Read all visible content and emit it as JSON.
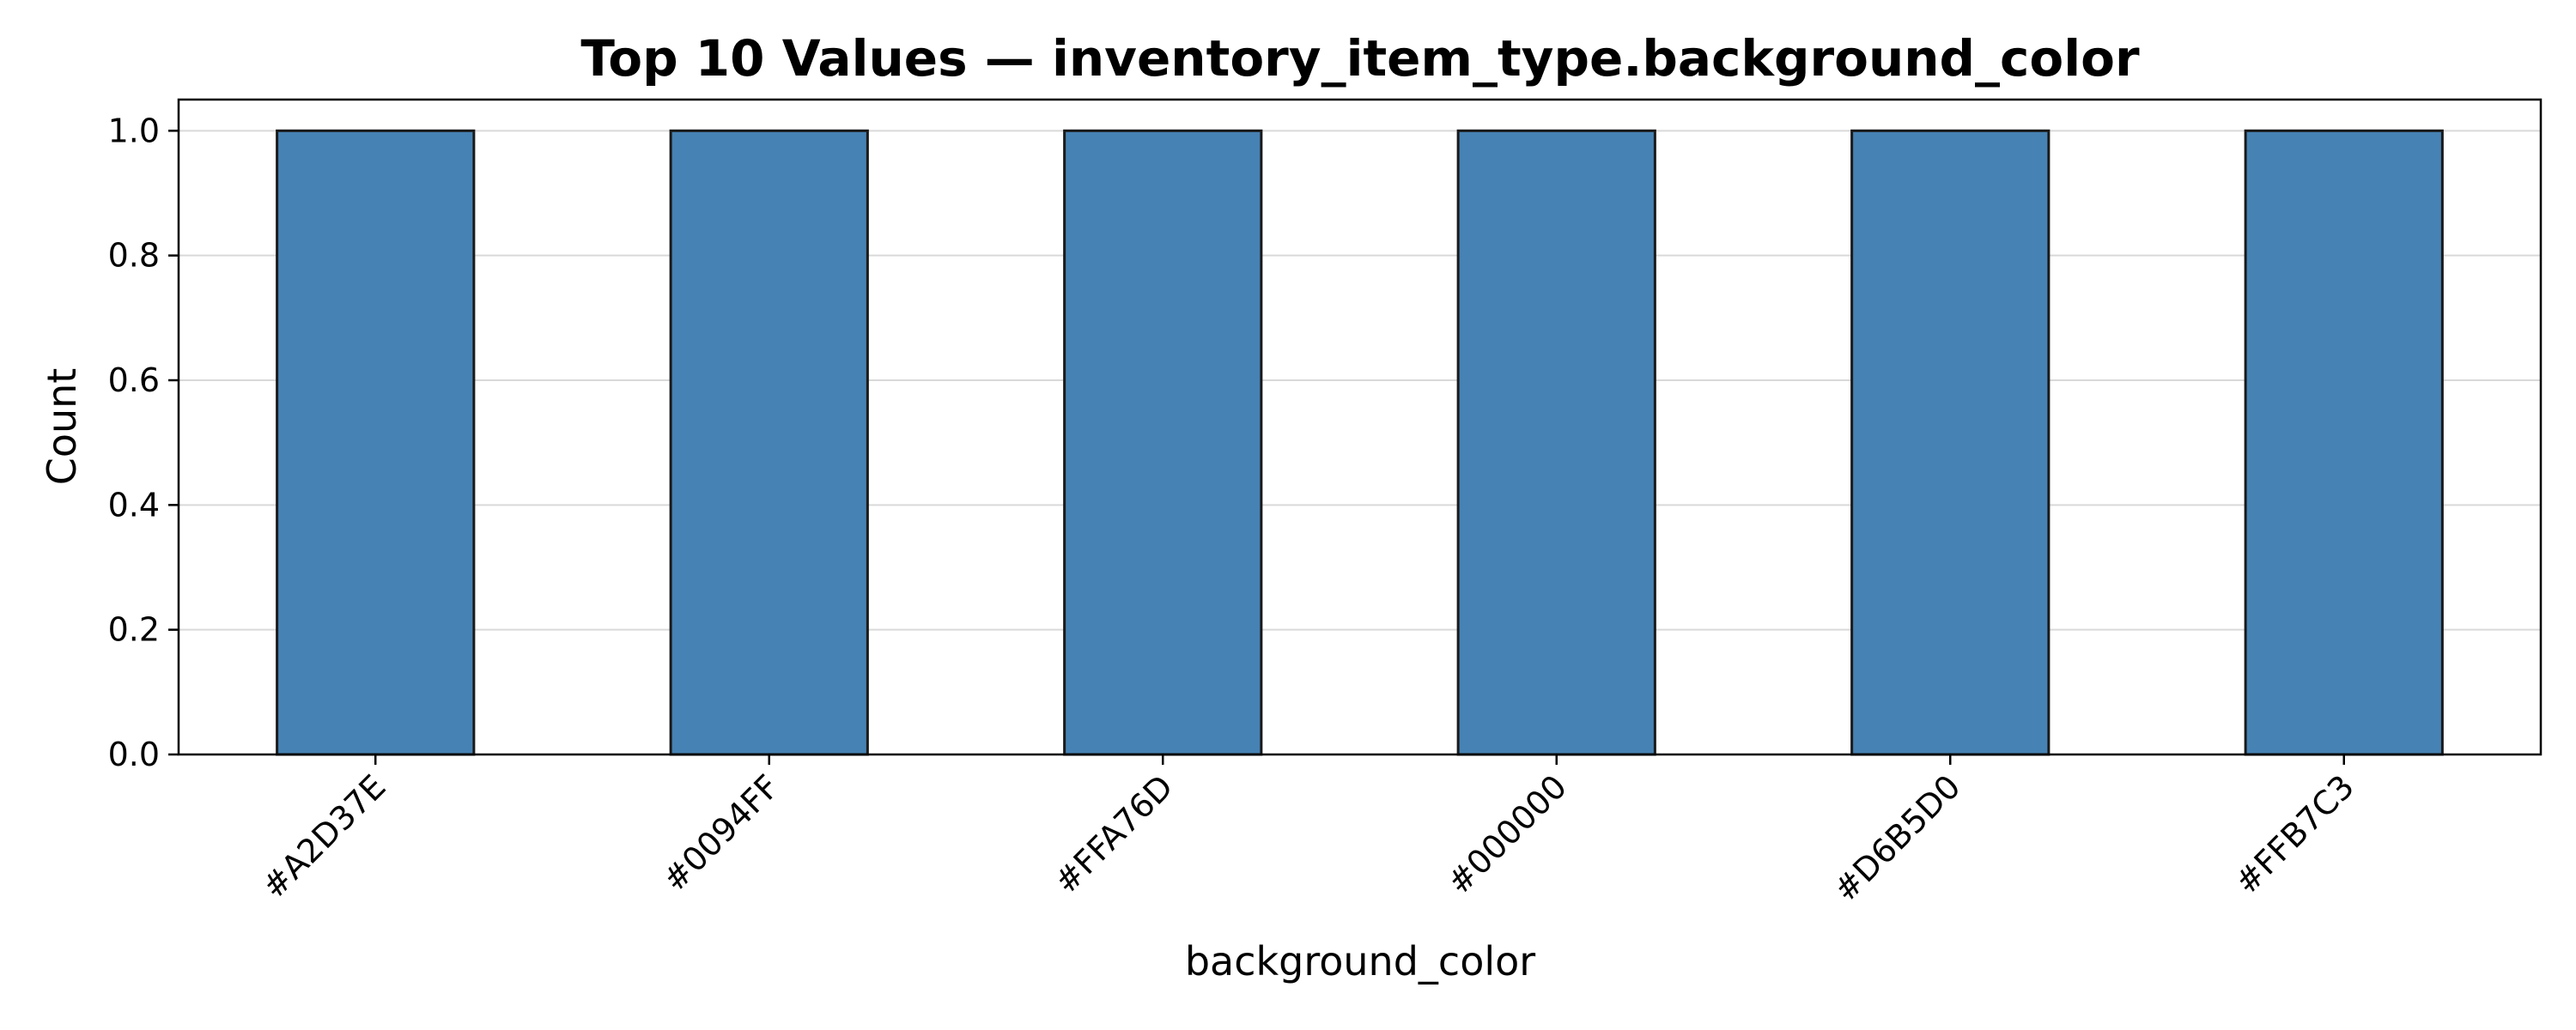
{
  "chart_data": {
    "type": "bar",
    "title": "Top 10 Values — inventory_item_type.background_color",
    "xlabel": "background_color",
    "ylabel": "Count",
    "categories": [
      "#A2D37E",
      "#0094FF",
      "#FFA76D",
      "#000000",
      "#D6B5D0",
      "#FFB7C3"
    ],
    "values": [
      1,
      1,
      1,
      1,
      1,
      1
    ],
    "ylim": [
      0,
      1.05
    ],
    "yticks": [
      "0.0",
      "0.2",
      "0.4",
      "0.6",
      "0.8",
      "1.0"
    ],
    "grid": "horizontal",
    "legend": "none",
    "colors": {
      "bar_fill": "#4682B4",
      "bar_edge": "#1a1a1a",
      "grid": "#d9d9d9"
    }
  }
}
